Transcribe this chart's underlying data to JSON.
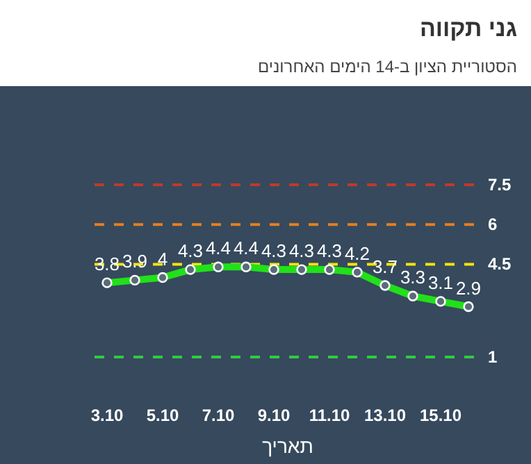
{
  "chart_data": {
    "type": "line",
    "title": "גני תקווה",
    "subtitle": "הסטוריית הציון ב-14 הימים האחרונים",
    "xlabel": "תאריך",
    "categories": [
      "3.10",
      null,
      "5.10",
      null,
      "7.10",
      null,
      "9.10",
      null,
      "11.10",
      null,
      "13.10",
      null,
      "15.10",
      null
    ],
    "series": [
      {
        "color": "#22e01a",
        "values": [
          3.8,
          3.9,
          4,
          4.3,
          4.4,
          4.4,
          4.3,
          4.3,
          4.3,
          4.2,
          3.7,
          3.3,
          3.1,
          2.9
        ]
      }
    ],
    "tick_labels": "x",
    "data_labels": true,
    "marker": "circle",
    "line_style": "solid",
    "ref_lines": [
      {
        "axis": "y",
        "value": 7.5,
        "label": "7.5",
        "color": "#c0392b",
        "line_style": "dashed"
      },
      {
        "axis": "y",
        "value": 6,
        "label": "6",
        "color": "#e67e22",
        "line_style": "dashed"
      },
      {
        "axis": "y",
        "value": 4.5,
        "label": "4.5",
        "color": "#f1e40f",
        "line_style": "dashed"
      },
      {
        "axis": "y",
        "value": 1,
        "label": "1",
        "color": "#2ecc40",
        "line_style": "dashed"
      }
    ]
  }
}
